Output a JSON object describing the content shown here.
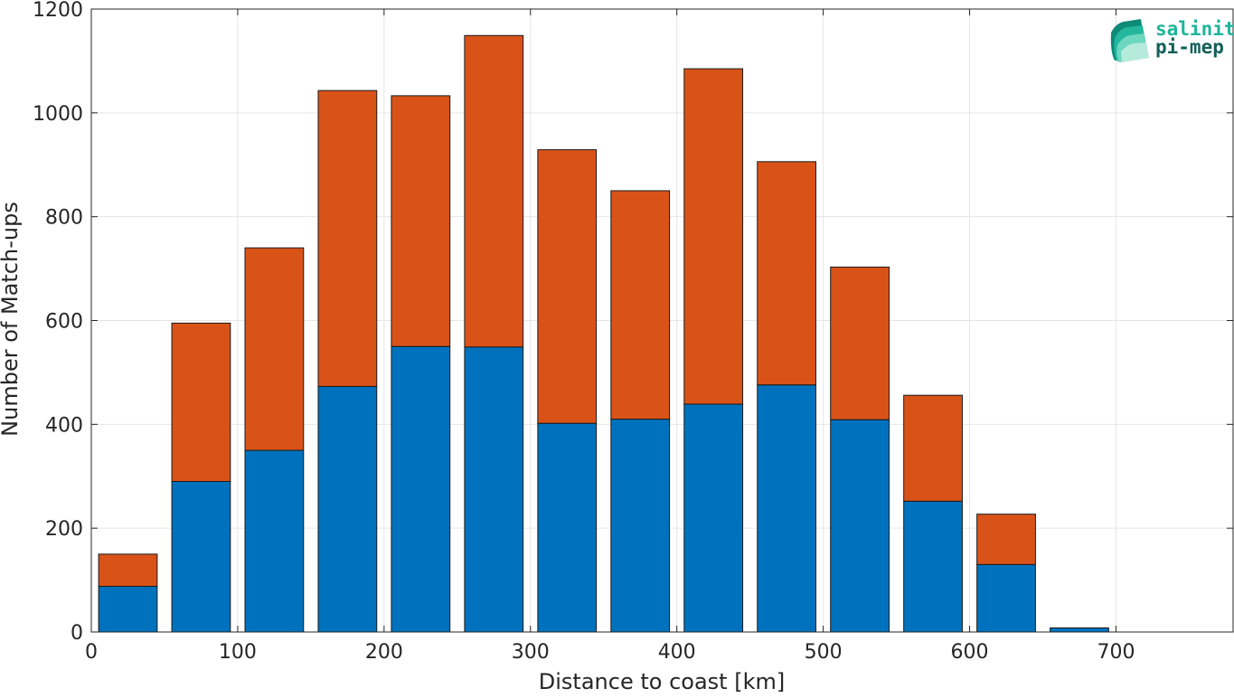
{
  "chart_data": {
    "type": "bar",
    "stacked": true,
    "xlabel": "Distance to coast [km]",
    "ylabel": "Number of Match-ups",
    "xlim": [
      0,
      780
    ],
    "ylim": [
      0,
      1200
    ],
    "xticks": [
      0,
      100,
      200,
      300,
      400,
      500,
      600,
      700
    ],
    "yticks": [
      0,
      200,
      400,
      600,
      800,
      1000,
      1200
    ],
    "grid": true,
    "bin_width": 50,
    "bar_width": 40,
    "x": [
      25,
      75,
      125,
      175,
      225,
      275,
      325,
      375,
      425,
      475,
      525,
      575,
      625,
      675
    ],
    "series": [
      {
        "color": "#0072BD",
        "values": [
          88,
          290,
          350,
          473,
          550,
          549,
          402,
          410,
          439,
          476,
          409,
          252,
          130,
          8
        ]
      },
      {
        "color": "#D95319",
        "values": [
          62,
          305,
          390,
          570,
          483,
          600,
          527,
          440,
          646,
          430,
          294,
          204,
          97,
          0
        ]
      }
    ]
  },
  "logo": {
    "line1": "salinity",
    "line2": "pi-mep",
    "color1": "#1FB59B",
    "color2": "#13605A"
  }
}
